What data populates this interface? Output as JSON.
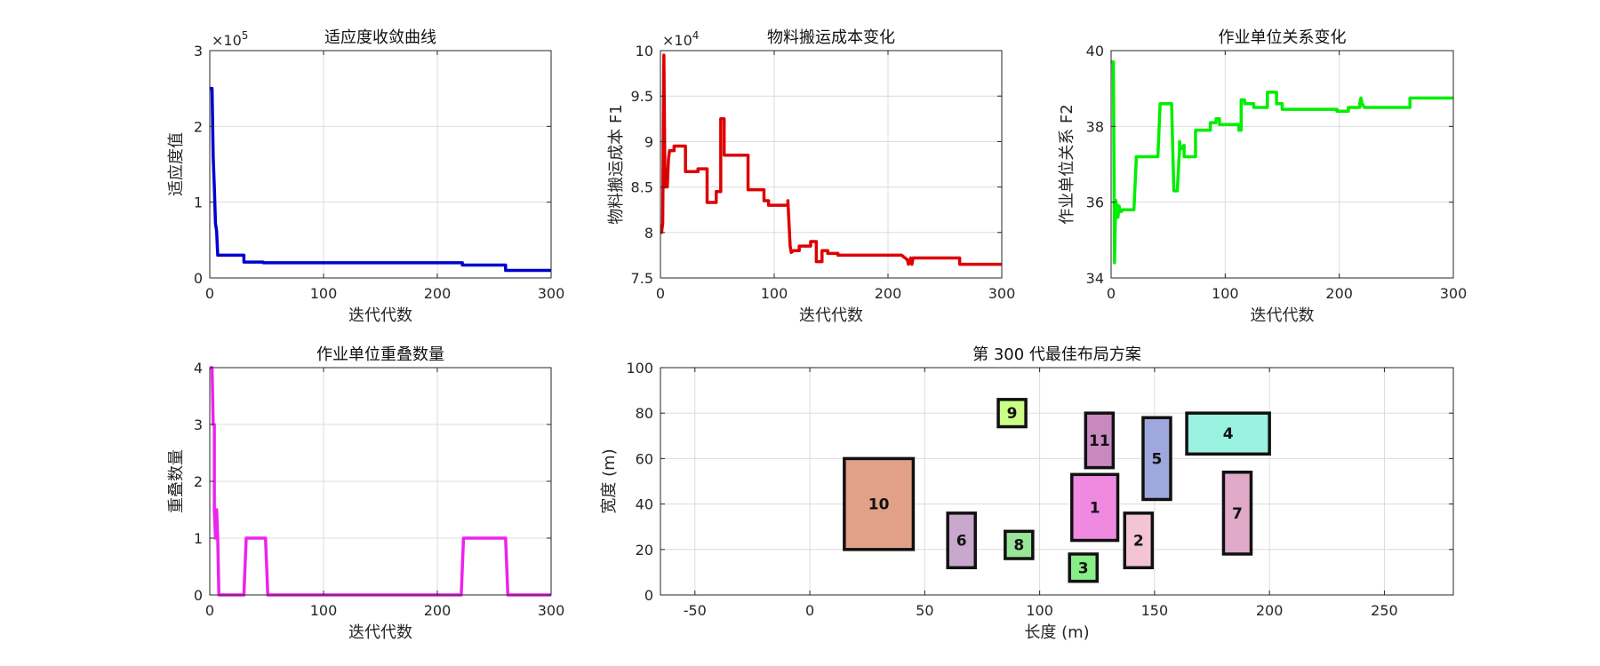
{
  "chart_data": [
    {
      "type": "line",
      "title": "适应度收敛曲线",
      "xlabel": "迭代代数",
      "ylabel": "适应度值",
      "xlim": [
        0,
        300
      ],
      "ylim": [
        0,
        3
      ],
      "xticks": [
        "0",
        "100",
        "200",
        "300"
      ],
      "yticks": [
        "0",
        "1",
        "2",
        "3"
      ],
      "exponent": "×10",
      "exponent_power": "5",
      "grid": true,
      "color": "#0000cc",
      "x": [
        0,
        2,
        3,
        4,
        5,
        6,
        7,
        30,
        30,
        47,
        47,
        222,
        222,
        260,
        260,
        300
      ],
      "y": [
        2.5,
        2.5,
        1.6,
        1.2,
        0.72,
        0.62,
        0.3,
        0.3,
        0.21,
        0.21,
        0.2,
        0.2,
        0.17,
        0.17,
        0.1,
        0.1
      ]
    },
    {
      "type": "line",
      "title": "物料搬运成本变化",
      "xlabel": "迭代代数",
      "ylabel": "物料搬运成本 F1",
      "xlim": [
        0,
        300
      ],
      "ylim": [
        7.5,
        10
      ],
      "xticks": [
        "0",
        "100",
        "200",
        "300"
      ],
      "yticks": [
        "7.5",
        "8",
        "8.5",
        "9",
        "9.5",
        "10"
      ],
      "exponent": "×10",
      "exponent_power": "4",
      "grid": true,
      "color": "#dd0000",
      "x": [
        1,
        2,
        3,
        4,
        5,
        6,
        7,
        8,
        12,
        12,
        22,
        22,
        33,
        33,
        41,
        41,
        49,
        49,
        53,
        53,
        56,
        56,
        77,
        77,
        91,
        91,
        95,
        95,
        112,
        112,
        113,
        114,
        115,
        117,
        122,
        122,
        132,
        132,
        137,
        137,
        142,
        142,
        147,
        147,
        156,
        156,
        212,
        215,
        217,
        218,
        220,
        221,
        222,
        223,
        263,
        263,
        300
      ],
      "y": [
        8.0,
        8.1,
        9.95,
        8.5,
        8.7,
        8.5,
        8.8,
        8.9,
        8.9,
        8.95,
        8.95,
        8.67,
        8.67,
        8.7,
        8.7,
        8.33,
        8.33,
        8.45,
        8.45,
        9.25,
        9.25,
        8.85,
        8.85,
        8.47,
        8.47,
        8.35,
        8.35,
        8.3,
        8.3,
        8.35,
        8.1,
        7.85,
        7.78,
        7.8,
        7.8,
        7.85,
        7.85,
        7.9,
        7.9,
        7.68,
        7.68,
        7.8,
        7.8,
        7.77,
        7.77,
        7.75,
        7.75,
        7.72,
        7.7,
        7.65,
        7.72,
        7.65,
        7.72,
        7.72,
        7.72,
        7.65,
        7.65
      ]
    },
    {
      "type": "line",
      "title": "作业单位关系变化",
      "xlabel": "迭代代数",
      "ylabel": "作业单位关系 F2",
      "xlim": [
        0,
        300
      ],
      "ylim": [
        34,
        40
      ],
      "xticks": [
        "0",
        "100",
        "200",
        "300"
      ],
      "yticks": [
        "34",
        "36",
        "38",
        "40"
      ],
      "grid": true,
      "color": "#00ee00",
      "x": [
        1,
        2,
        3,
        4,
        5,
        6,
        7,
        8,
        9,
        10,
        11,
        13,
        13,
        20,
        20,
        22,
        22,
        41,
        41,
        43,
        43,
        53,
        53,
        55,
        55,
        58,
        58,
        60,
        60,
        61,
        64,
        64,
        74,
        74,
        87,
        87,
        92,
        92,
        95,
        95,
        112,
        112,
        114,
        114,
        117,
        117,
        125,
        125,
        137,
        137,
        145,
        145,
        150,
        150,
        162,
        162,
        198,
        198,
        208,
        208,
        213,
        213,
        216,
        216,
        218,
        218,
        219,
        220,
        222,
        222,
        262,
        262,
        300
      ],
      "y": [
        39.7,
        39.7,
        34.4,
        36.05,
        35.9,
        35.6,
        35.9,
        35.75,
        35.75,
        35.8,
        35.8,
        35.8,
        35.8,
        35.8,
        35.8,
        37.1,
        37.2,
        37.2,
        37.2,
        38.6,
        38.6,
        38.6,
        38.6,
        36.3,
        36.3,
        36.3,
        36.3,
        37.4,
        37.6,
        37.4,
        37.5,
        37.2,
        37.2,
        37.9,
        37.9,
        38.1,
        38.1,
        38.2,
        38.2,
        38.05,
        38.05,
        37.9,
        37.9,
        38.7,
        38.7,
        38.6,
        38.6,
        38.5,
        38.5,
        38.9,
        38.9,
        38.6,
        38.6,
        38.45,
        38.45,
        38.45,
        38.45,
        38.4,
        38.4,
        38.5,
        38.5,
        38.5,
        38.5,
        38.5,
        38.5,
        38.6,
        38.75,
        38.6,
        38.5,
        38.5,
        38.5,
        38.75,
        38.75
      ]
    },
    {
      "type": "line",
      "title": "作业单位重叠数量",
      "xlabel": "迭代代数",
      "ylabel": "重叠数量",
      "xlim": [
        0,
        300
      ],
      "ylim": [
        0,
        4
      ],
      "xticks": [
        "0",
        "100",
        "200",
        "300"
      ],
      "yticks": [
        "0",
        "1",
        "2",
        "3",
        "4"
      ],
      "grid": true,
      "color": "#ee22ee",
      "x": [
        1,
        2,
        3,
        3,
        4,
        4,
        5,
        6,
        7,
        8,
        30,
        31,
        32,
        49,
        50,
        51,
        221,
        222,
        223,
        260,
        261,
        262,
        300
      ],
      "y": [
        4,
        4,
        3,
        3,
        3,
        1.5,
        1,
        1.5,
        1,
        0,
        0,
        0.5,
        1,
        1,
        0.5,
        0,
        0,
        0.5,
        1,
        1,
        0.5,
        0,
        0
      ]
    },
    {
      "type": "layout",
      "title": "第 300 代最佳布局方案",
      "xlabel": "长度 (m)",
      "ylabel": "宽度 (m)",
      "xlim": [
        -65,
        280
      ],
      "ylim": [
        0,
        100
      ],
      "xticks": [
        "-50",
        "0",
        "50",
        "100",
        "150",
        "200",
        "250"
      ],
      "xtick_values": [
        -50,
        0,
        50,
        100,
        150,
        200,
        250
      ],
      "yticks": [
        "0",
        "20",
        "40",
        "60",
        "80",
        "100"
      ],
      "ytick_values": [
        0,
        20,
        40,
        60,
        80,
        100
      ],
      "grid": true,
      "units": [
        {
          "label": "10",
          "x": 15,
          "y": 20,
          "w": 30,
          "h": 40,
          "color": "#e0a188"
        },
        {
          "label": "9",
          "x": 82,
          "y": 74,
          "w": 12,
          "h": 12,
          "color": "#ccff88"
        },
        {
          "label": "11",
          "x": 120,
          "y": 56,
          "w": 12,
          "h": 24,
          "color": "#c888c0"
        },
        {
          "label": "5",
          "x": 145,
          "y": 42,
          "w": 12,
          "h": 36,
          "color": "#9fa8dd"
        },
        {
          "label": "4",
          "x": 164,
          "y": 62,
          "w": 36,
          "h": 18,
          "color": "#99f2e0"
        },
        {
          "label": "1",
          "x": 114,
          "y": 24,
          "w": 20,
          "h": 29,
          "color": "#f08ae0"
        },
        {
          "label": "7",
          "x": 180,
          "y": 18,
          "w": 12,
          "h": 36,
          "color": "#e0aac8"
        },
        {
          "label": "6",
          "x": 60,
          "y": 12,
          "w": 12,
          "h": 24,
          "color": "#c8a8cc"
        },
        {
          "label": "8",
          "x": 85,
          "y": 16,
          "w": 12,
          "h": 12,
          "color": "#99e699"
        },
        {
          "label": "2",
          "x": 137,
          "y": 12,
          "w": 12,
          "h": 24,
          "color": "#f2c4d4"
        },
        {
          "label": "3",
          "x": 113,
          "y": 6,
          "w": 12,
          "h": 12,
          "color": "#88ee88"
        }
      ]
    }
  ]
}
